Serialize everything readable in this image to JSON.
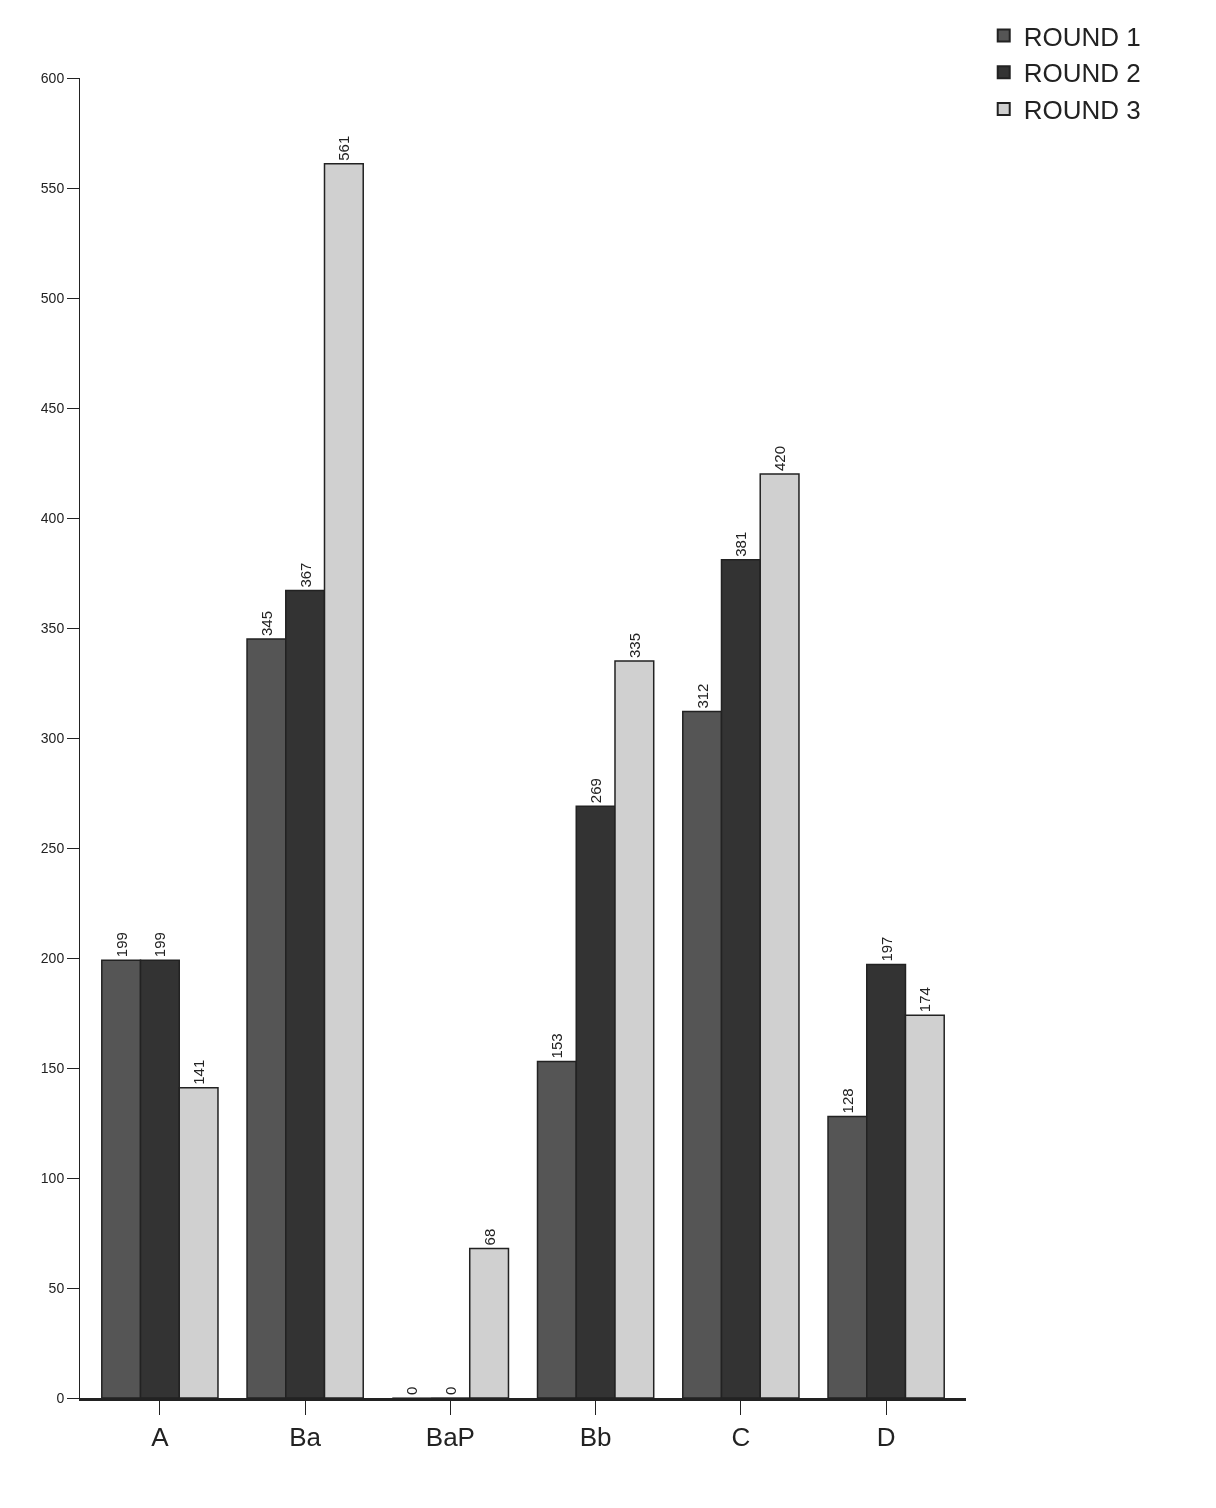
{
  "chart_data": {
    "type": "bar",
    "categories": [
      "A",
      "Ba",
      "BaP",
      "Bb",
      "C",
      "D"
    ],
    "series": [
      {
        "name": "ROUND 1",
        "color": "#555555",
        "values": [
          199,
          345,
          0,
          153,
          312,
          128
        ]
      },
      {
        "name": "ROUND 2",
        "color": "#333333",
        "values": [
          199,
          367,
          0,
          269,
          381,
          197
        ]
      },
      {
        "name": "ROUND 3",
        "color": "#d0d0d0",
        "values": [
          141,
          561,
          68,
          335,
          420,
          174
        ]
      }
    ],
    "ylim": [
      0,
      600
    ],
    "yticks": [
      0,
      50,
      100,
      150,
      200,
      250,
      300,
      350,
      400,
      450,
      500,
      550,
      600
    ],
    "data_labels": true,
    "legend": "top right"
  }
}
